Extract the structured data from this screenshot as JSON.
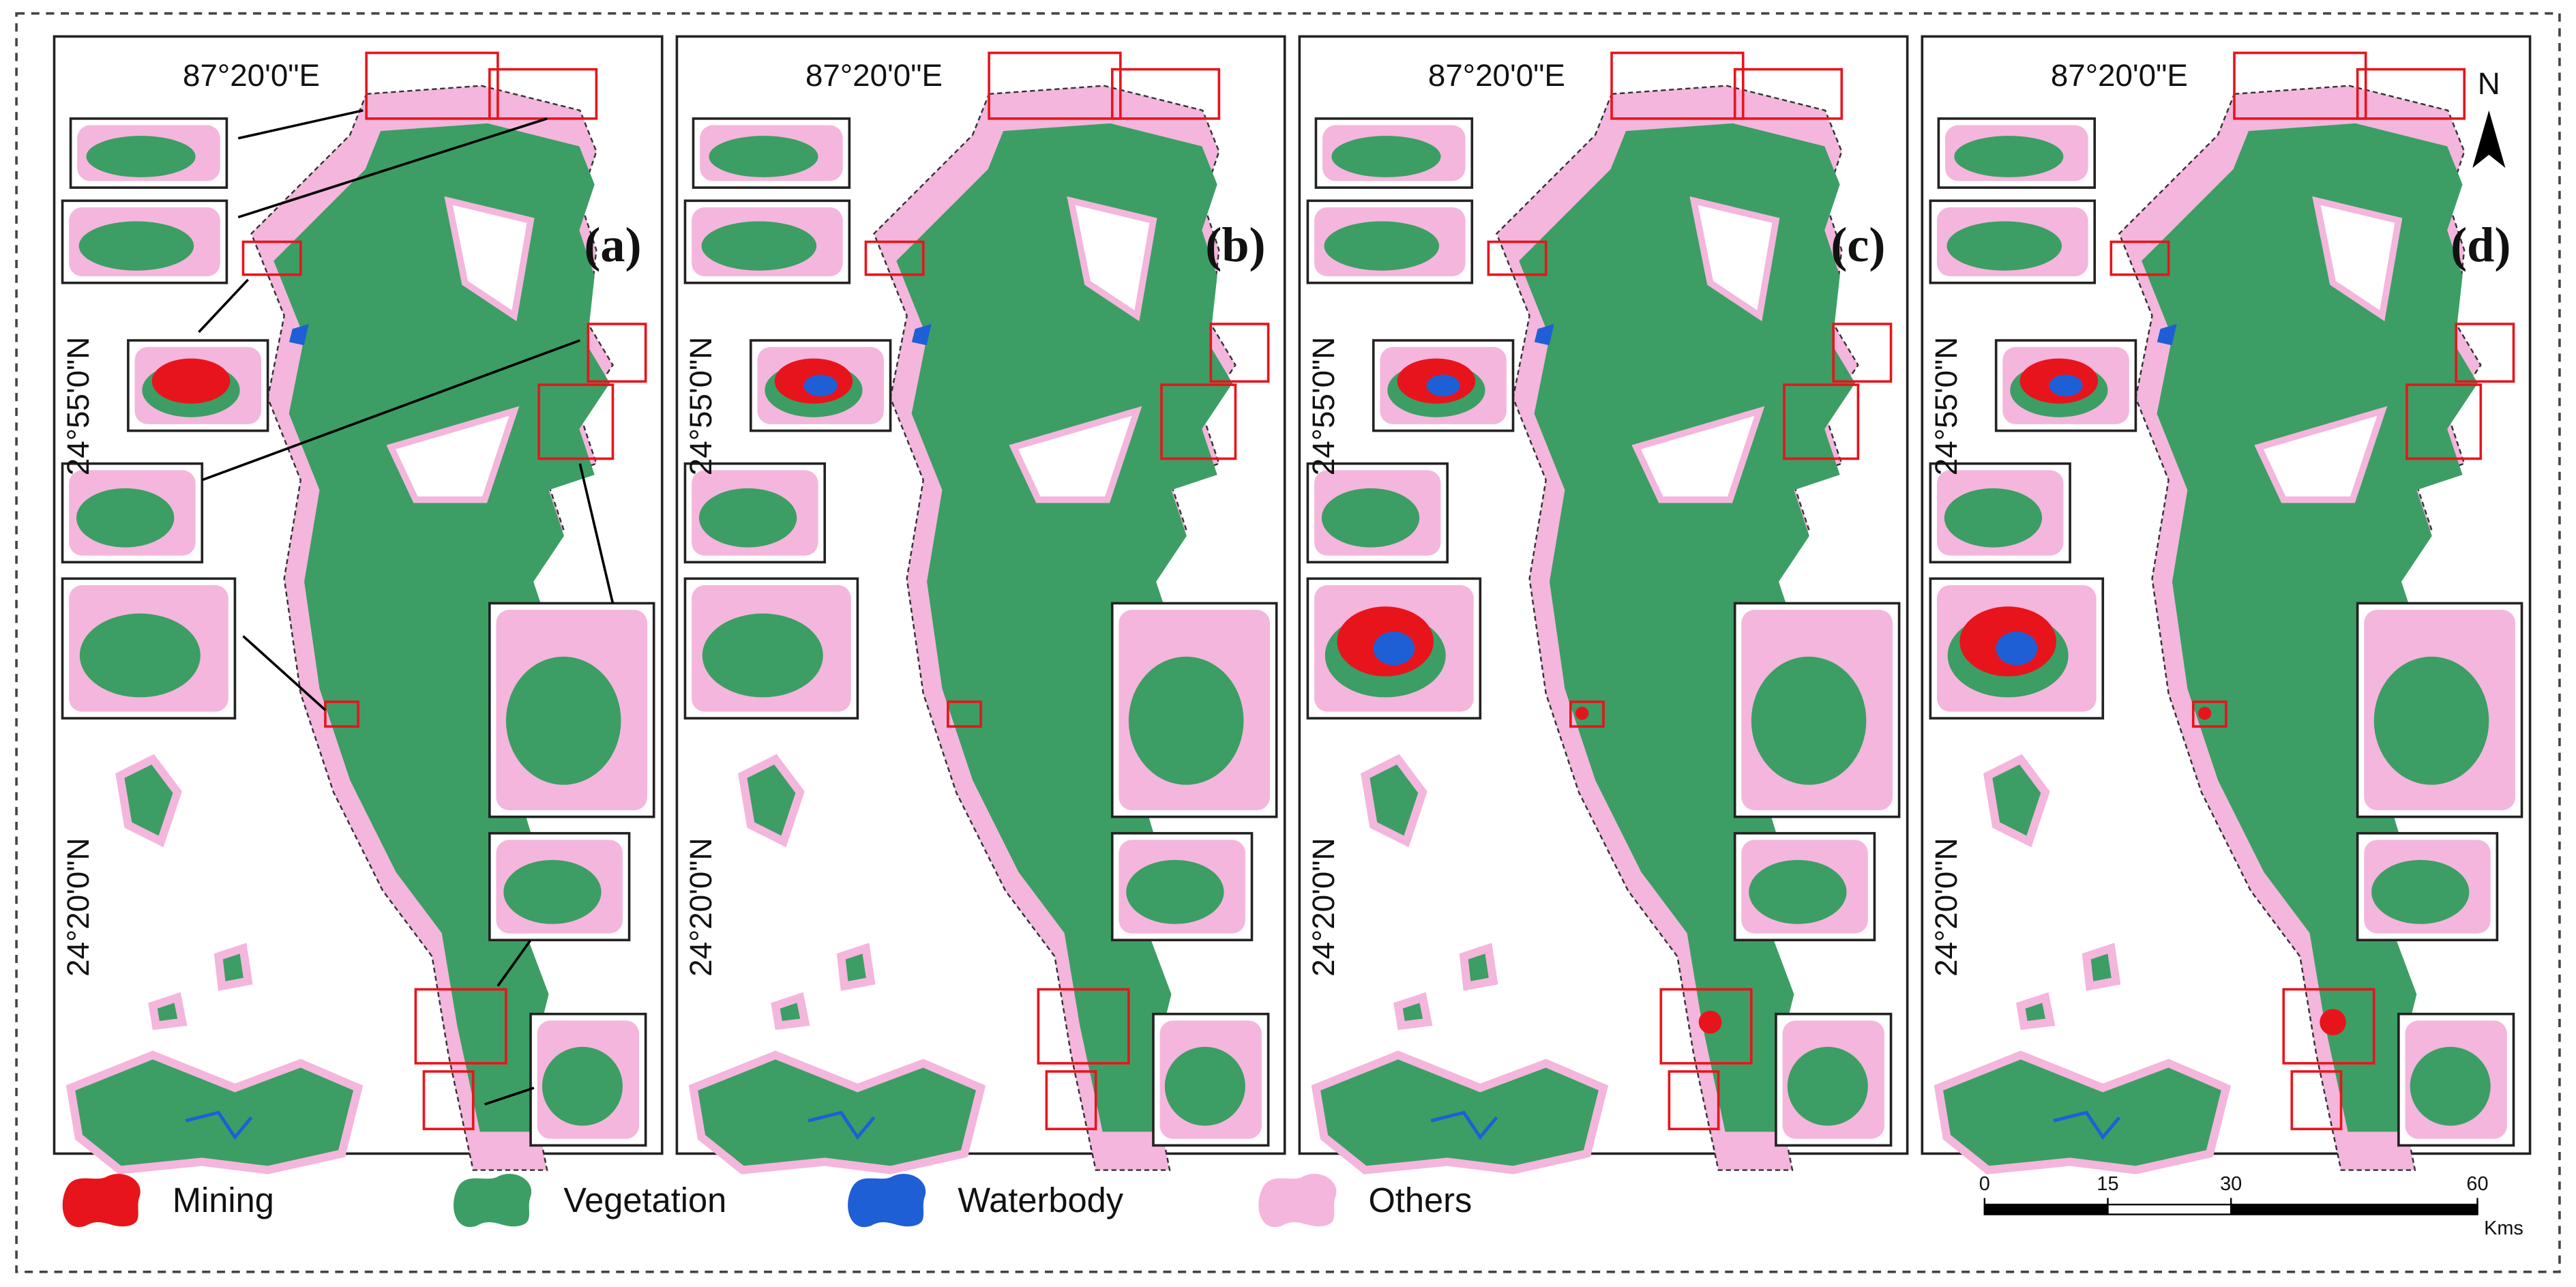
{
  "panels": [
    {
      "label": "(a)",
      "lon_label": "87°20'0\"E",
      "lat_labels": [
        "24°55'0\"N",
        "24°20'0\"N"
      ]
    },
    {
      "label": "(b)",
      "lon_label": "87°20'0\"E",
      "lat_labels": [
        "24°55'0\"N",
        "24°20'0\"N"
      ]
    },
    {
      "label": "(c)",
      "lon_label": "87°20'0\"E",
      "lat_labels": [
        "24°55'0\"N",
        "24°20'0\"N"
      ]
    },
    {
      "label": "(d)",
      "lon_label": "87°20'0\"E",
      "lat_labels": [
        "24°55'0\"N",
        "24°20'0\"N"
      ]
    }
  ],
  "legend": [
    {
      "name": "Mining",
      "color": "#e8141c"
    },
    {
      "name": "Vegetation",
      "color": "#3c9e64"
    },
    {
      "name": "Waterbody",
      "color": "#1f5fd6"
    },
    {
      "name": "Others",
      "color": "#f4b6dc"
    }
  ],
  "north_label": "N",
  "scale_bar": {
    "ticks": [
      0,
      15,
      30,
      60
    ],
    "unit": "Kms"
  }
}
